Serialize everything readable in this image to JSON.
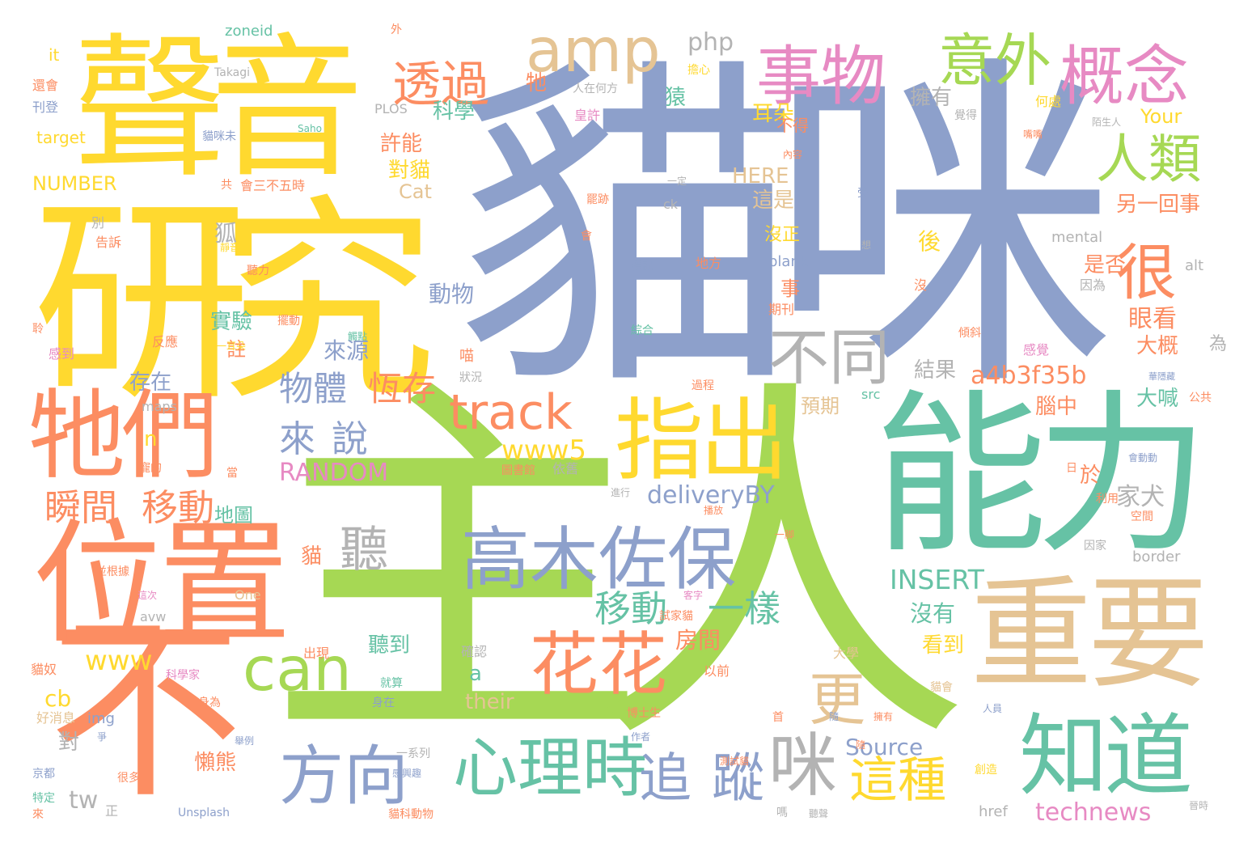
{
  "palette": {
    "blue": "#8DA0CB",
    "green": "#A6D854",
    "teal": "#66C2A5",
    "orange": "#FC8D62",
    "yellow": "#FFD92F",
    "tan": "#E5C494",
    "pink": "#E78AC3",
    "gray": "#B3B3B3"
  },
  "words": [
    {
      "text": "主人",
      "color": "green"
    },
    {
      "text": "貓咪",
      "color": "blue"
    },
    {
      "text": "研究",
      "color": "yellow"
    },
    {
      "text": "聲音",
      "color": "yellow"
    },
    {
      "text": "能力",
      "color": "teal"
    },
    {
      "text": "不",
      "color": "orange"
    },
    {
      "text": "位置",
      "color": "orange"
    },
    {
      "text": "重要",
      "color": "tan"
    },
    {
      "text": "牠們",
      "color": "orange"
    },
    {
      "text": "指出",
      "color": "yellow"
    },
    {
      "text": "知道",
      "color": "teal"
    },
    {
      "text": "事物",
      "color": "pink"
    },
    {
      "text": "概念",
      "color": "pink"
    },
    {
      "text": "意外",
      "color": "green"
    },
    {
      "text": "amp",
      "color": "tan"
    },
    {
      "text": "高木佐保",
      "color": "blue"
    },
    {
      "text": "心理時",
      "color": "teal"
    },
    {
      "text": "追",
      "color": "blue"
    },
    {
      "text": "蹤",
      "color": "blue"
    },
    {
      "text": "方向",
      "color": "blue"
    },
    {
      "text": "花花",
      "color": "orange"
    },
    {
      "text": "can",
      "color": "green"
    },
    {
      "text": "track",
      "color": "orange"
    },
    {
      "text": "不同",
      "color": "gray"
    },
    {
      "text": "人類",
      "color": "green"
    },
    {
      "text": "很",
      "color": "orange"
    },
    {
      "text": "透過",
      "color": "orange"
    },
    {
      "text": "咪",
      "color": "gray"
    },
    {
      "text": "這種",
      "color": "yellow"
    },
    {
      "text": "更",
      "color": "tan"
    },
    {
      "text": "聽",
      "color": "gray"
    },
    {
      "text": "移動",
      "color": "orange"
    },
    {
      "text": "瞬間",
      "color": "orange"
    },
    {
      "text": "一樣",
      "color": "teal"
    },
    {
      "text": "移動",
      "color": "teal"
    },
    {
      "text": "來",
      "color": "blue"
    },
    {
      "text": "說",
      "color": "blue"
    },
    {
      "text": "物體",
      "color": "blue"
    },
    {
      "text": "恆存",
      "color": "orange"
    },
    {
      "text": "www5",
      "color": "yellow"
    },
    {
      "text": "RANDOM",
      "color": "pink"
    },
    {
      "text": "deliveryBY",
      "color": "blue"
    },
    {
      "text": "INSERT",
      "color": "teal"
    },
    {
      "text": "a4b3f35b",
      "color": "orange"
    },
    {
      "text": "technews",
      "color": "pink"
    },
    {
      "text": "Source",
      "color": "blue"
    },
    {
      "text": "php",
      "color": "gray"
    },
    {
      "text": "www",
      "color": "yellow"
    },
    {
      "text": "tw",
      "color": "gray"
    },
    {
      "text": "cb",
      "color": "yellow"
    },
    {
      "text": "their",
      "color": "tan"
    },
    {
      "text": "a",
      "color": "teal"
    },
    {
      "text": "n",
      "color": "yellow"
    },
    {
      "text": "HERE",
      "color": "tan"
    },
    {
      "text": "Cat",
      "color": "tan"
    },
    {
      "text": "NUMBER",
      "color": "yellow"
    },
    {
      "text": "Your",
      "color": "yellow"
    },
    {
      "text": "科學",
      "color": "teal"
    },
    {
      "text": "許能",
      "color": "orange"
    },
    {
      "text": "對貓",
      "color": "yellow"
    },
    {
      "text": "耳朵",
      "color": "yellow"
    },
    {
      "text": "這是",
      "color": "tan"
    },
    {
      "text": "沒正",
      "color": "yellow"
    },
    {
      "text": "擁有",
      "color": "gray"
    },
    {
      "text": "另一回事",
      "color": "orange"
    },
    {
      "text": "是否",
      "color": "orange"
    },
    {
      "text": "眼看",
      "color": "orange"
    },
    {
      "text": "大概",
      "color": "orange"
    },
    {
      "text": "為",
      "color": "gray"
    },
    {
      "text": "結果",
      "color": "gray"
    },
    {
      "text": "預期",
      "color": "tan"
    },
    {
      "text": "腦中",
      "color": "orange"
    },
    {
      "text": "大喊",
      "color": "teal"
    },
    {
      "text": "動物",
      "color": "blue"
    },
    {
      "text": "實驗",
      "color": "teal"
    },
    {
      "text": "來源",
      "color": "blue"
    },
    {
      "text": "存在",
      "color": "blue"
    },
    {
      "text": "註",
      "color": "orange"
    },
    {
      "text": "地圖",
      "color": "teal"
    },
    {
      "text": "家犬",
      "color": "gray"
    },
    {
      "text": "房間",
      "color": "orange"
    },
    {
      "text": "沒有",
      "color": "teal"
    },
    {
      "text": "看到",
      "color": "yellow"
    },
    {
      "text": "聽到",
      "color": "teal"
    },
    {
      "text": "懶熊",
      "color": "orange"
    },
    {
      "text": "狐",
      "color": "gray"
    },
    {
      "text": "猿",
      "color": "teal"
    },
    {
      "text": "貓",
      "color": "orange"
    },
    {
      "text": "對",
      "color": "gray"
    },
    {
      "text": "牠",
      "color": "orange"
    },
    {
      "text": "後",
      "color": "yellow"
    },
    {
      "text": "事",
      "color": "orange"
    },
    {
      "text": "於",
      "color": "orange"
    },
    {
      "text": "不得",
      "color": "orange"
    },
    {
      "text": "zoneid",
      "color": "teal"
    },
    {
      "text": "it",
      "color": "yellow"
    },
    {
      "text": "target",
      "color": "yellow"
    },
    {
      "text": "mental",
      "color": "gray"
    },
    {
      "text": "blank",
      "color": "blue"
    },
    {
      "text": "border",
      "color": "gray"
    },
    {
      "text": "maps",
      "color": "gray"
    },
    {
      "text": "src",
      "color": "teal"
    },
    {
      "text": "alt",
      "color": "gray"
    },
    {
      "text": "img",
      "color": "blue"
    },
    {
      "text": "href",
      "color": "gray"
    },
    {
      "text": "avw",
      "color": "gray"
    },
    {
      "text": "One",
      "color": "tan"
    },
    {
      "text": "ck",
      "color": "gray"
    },
    {
      "text": "PLOS",
      "color": "gray"
    },
    {
      "text": "Saho",
      "color": "teal"
    },
    {
      "text": "Takagi",
      "color": "gray"
    },
    {
      "text": "Unsplash",
      "color": "blue"
    },
    {
      "text": "還會",
      "color": "orange"
    },
    {
      "text": "刊登",
      "color": "blue"
    },
    {
      "text": "共",
      "color": "orange"
    },
    {
      "text": "會三不五時",
      "color": "orange"
    },
    {
      "text": "告訴",
      "color": "orange"
    },
    {
      "text": "別",
      "color": "gray"
    },
    {
      "text": "貓咪未",
      "color": "blue"
    },
    {
      "text": "皇許",
      "color": "pink"
    },
    {
      "text": "擔心",
      "color": "yellow"
    },
    {
      "text": "人在何方",
      "color": "gray"
    },
    {
      "text": "外",
      "color": "orange"
    },
    {
      "text": "何處",
      "color": "yellow"
    },
    {
      "text": "覺得",
      "color": "gray"
    },
    {
      "text": "陌生人",
      "color": "gray"
    },
    {
      "text": "地方",
      "color": "orange"
    },
    {
      "text": "標記",
      "color": "blue"
    },
    {
      "text": "綜合",
      "color": "teal"
    },
    {
      "text": "一定",
      "color": "gray"
    },
    {
      "text": "受",
      "color": "blue"
    },
    {
      "text": "想",
      "color": "gray"
    },
    {
      "text": "喵",
      "color": "orange"
    },
    {
      "text": "沒",
      "color": "orange"
    },
    {
      "text": "因為",
      "color": "gray"
    },
    {
      "text": "感覺",
      "color": "pink"
    },
    {
      "text": "傾斜",
      "color": "orange"
    },
    {
      "text": "期刊",
      "color": "orange"
    },
    {
      "text": "狀況",
      "color": "gray"
    },
    {
      "text": "過程",
      "color": "orange"
    },
    {
      "text": "聽力",
      "color": "orange"
    },
    {
      "text": "靜音",
      "color": "yellow"
    },
    {
      "text": "擺動",
      "color": "orange"
    },
    {
      "text": "一耳朵",
      "color": "yellow"
    },
    {
      "text": "反應",
      "color": "orange"
    },
    {
      "text": "感到",
      "color": "pink"
    },
    {
      "text": "聆",
      "color": "orange"
    },
    {
      "text": "寵的",
      "color": "orange"
    },
    {
      "text": "當",
      "color": "orange"
    },
    {
      "text": "圖書館",
      "color": "orange"
    },
    {
      "text": "依舊",
      "color": "gray"
    },
    {
      "text": "進行",
      "color": "gray"
    },
    {
      "text": "播放",
      "color": "orange"
    },
    {
      "text": "並根據",
      "color": "orange"
    },
    {
      "text": "這次",
      "color": "pink"
    },
    {
      "text": "客字",
      "color": "pink"
    },
    {
      "text": "試家貓",
      "color": "orange"
    },
    {
      "text": "出現",
      "color": "orange"
    },
    {
      "text": "確認",
      "color": "gray"
    },
    {
      "text": "以前",
      "color": "orange"
    },
    {
      "text": "大學",
      "color": "tan"
    },
    {
      "text": "貓會",
      "color": "tan"
    },
    {
      "text": "利用",
      "color": "orange"
    },
    {
      "text": "因家",
      "color": "gray"
    },
    {
      "text": "空間",
      "color": "orange"
    },
    {
      "text": "會動動",
      "color": "blue"
    },
    {
      "text": "公共",
      "color": "orange"
    },
    {
      "text": "日",
      "color": "orange"
    },
    {
      "text": "貓奴",
      "color": "orange"
    },
    {
      "text": "科學家",
      "color": "pink"
    },
    {
      "text": "好消息",
      "color": "tan"
    },
    {
      "text": "身為",
      "color": "orange"
    },
    {
      "text": "身在",
      "color": "blue"
    },
    {
      "text": "久",
      "color": "orange"
    },
    {
      "text": "就算",
      "color": "teal"
    },
    {
      "text": "博士生",
      "color": "orange"
    },
    {
      "text": "作者",
      "color": "blue"
    },
    {
      "text": "舉例",
      "color": "blue"
    },
    {
      "text": "首",
      "color": "orange"
    },
    {
      "text": "京都",
      "color": "blue"
    },
    {
      "text": "很多",
      "color": "orange"
    },
    {
      "text": "特定",
      "color": "teal"
    },
    {
      "text": "一系列",
      "color": "gray"
    },
    {
      "text": "感興趣",
      "color": "blue"
    },
    {
      "text": "貓科動物",
      "color": "orange"
    },
    {
      "text": "測試貓",
      "color": "orange"
    },
    {
      "text": "嗎",
      "color": "gray"
    },
    {
      "text": "聽聲",
      "color": "gray"
    },
    {
      "text": "創造",
      "color": "yellow"
    },
    {
      "text": "人員",
      "color": "blue"
    },
    {
      "text": "晉時",
      "color": "gray"
    },
    {
      "text": "正",
      "color": "gray"
    },
    {
      "text": "來",
      "color": "orange"
    },
    {
      "text": "觸點",
      "color": "teal"
    },
    {
      "text": "內容",
      "color": "orange"
    },
    {
      "text": "嘴嘴",
      "color": "orange"
    },
    {
      "text": "華隱藏",
      "color": "blue"
    },
    {
      "text": "會",
      "color": "orange"
    },
    {
      "text": "罷跡",
      "color": "orange"
    },
    {
      "text": "隨",
      "color": "blue"
    },
    {
      "text": "一脚",
      "color": "orange"
    },
    {
      "text": "擁有",
      "color": "orange"
    },
    {
      "text": "隨",
      "color": "orange"
    },
    {
      "text": "爭",
      "color": "blue"
    }
  ]
}
